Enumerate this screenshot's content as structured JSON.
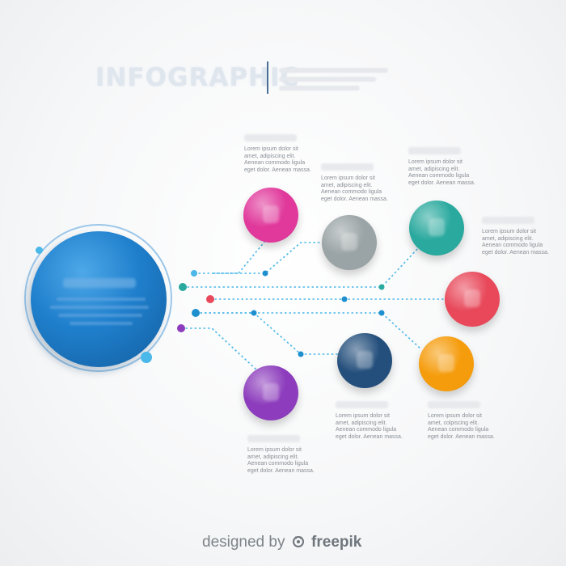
{
  "header": {
    "title": "INFOGRAPHIC"
  },
  "nodes": [
    {
      "id": "pink",
      "color": "#e0389b",
      "icon": "puzzle-icon",
      "text": [
        "Lorem ipsum dolor sit",
        "amet, adipiscing elit.",
        "Aenean commodo ligula",
        "eget dolor. Aenean massa."
      ]
    },
    {
      "id": "gray",
      "color": "#9aa3a5",
      "icon": "chat-icon",
      "text": [
        "Lorem ipsum dolor sit",
        "amet, adipiscing elit.",
        "Aenean commodo ligula",
        "eget dolor. Aenean massa."
      ]
    },
    {
      "id": "teal",
      "color": "#2aa99e",
      "icon": "lightbulb-icon",
      "text": [
        "Lorem ipsum dolor sit",
        "amet, adipiscing elit.",
        "Aenean commodo ligula",
        "eget dolor. Aenean massa."
      ]
    },
    {
      "id": "red",
      "color": "#e8485a",
      "icon": "shield-icon",
      "text": [
        "Lorem ipsum dolor sit",
        "amet, adipiscing elit.",
        "Aenean commodo ligula",
        "eget dolor. Aenean massa."
      ]
    },
    {
      "id": "navy",
      "color": "#244f7c",
      "icon": "document-icon",
      "text": [
        "Lorem ipsum dolor sit",
        "amet, adipiscing elit.",
        "Aenean commodo ligula",
        "eget dolor. Aenean massa."
      ]
    },
    {
      "id": "orange",
      "color": "#f59c0c",
      "icon": "people-icon",
      "text": [
        "Lorem ipsum dolor sit",
        "amet, colpiscing elit.",
        "Aenean commodo ligula",
        "eget dolor. Aenean massa."
      ]
    },
    {
      "id": "purple",
      "color": "#8c3cbc",
      "icon": "chart-icon",
      "text": [
        "Lorem ipsum dolor sit",
        "amet, adipiscing elit.",
        "Aenean commodo ligula",
        "eget dolor. Aenean massa."
      ]
    }
  ],
  "footer": {
    "prefix": "designed by",
    "brand": "freepik",
    "icon": "freepik-logo-icon"
  }
}
